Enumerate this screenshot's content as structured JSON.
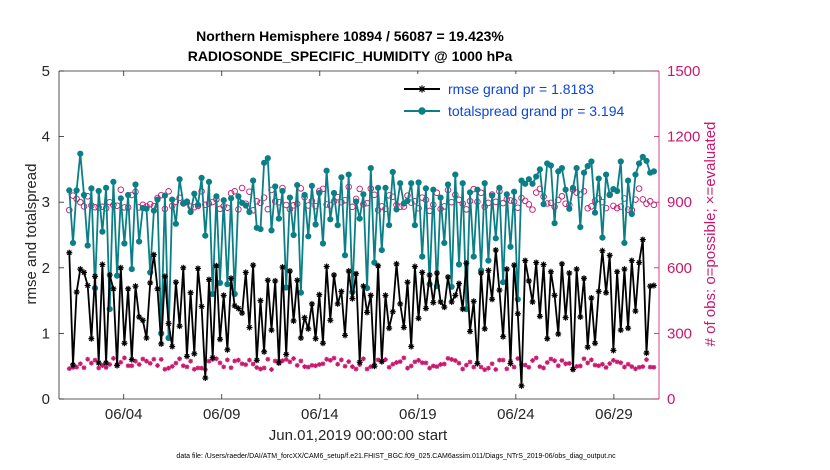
{
  "chart_data": {
    "type": "line",
    "title_line1": "Northern Hemisphere 10894 / 56087 = 19.423%",
    "title_line2": "RADIOSONDE_SPECIFIC_HUMIDITY @ 1000 hPa",
    "xlabel": "Jun.01,2019 00:00:00 start",
    "ylabel_left": "rmse and totalspread",
    "ylabel_right": "# of obs: o=possible; ×=evaluated",
    "ylim_left": [
      0,
      5
    ],
    "ylim_right": [
      0,
      1500
    ],
    "yticks_left": [
      "0",
      "1",
      "2",
      "3",
      "4",
      "5"
    ],
    "yticks_right": [
      "0",
      "300",
      "600",
      "900",
      "1200",
      "1500"
    ],
    "xlim_days": [
      0.6,
      31.2
    ],
    "x_ticks": [
      {
        "day": 3.9,
        "label": "06/04"
      },
      {
        "day": 8.9,
        "label": "06/09"
      },
      {
        "day": 13.9,
        "label": "06/14"
      },
      {
        "day": 18.9,
        "label": "06/19"
      },
      {
        "day": 23.9,
        "label": "06/24"
      },
      {
        "day": 28.9,
        "label": "06/29"
      }
    ],
    "legend": {
      "placement": "top-right",
      "entries": [
        "rmse grand pr = 1.8183",
        "totalspread grand pr = 3.194"
      ]
    },
    "series": [
      {
        "name": "rmse",
        "color": "#000000",
        "marker": "asterisk",
        "values": [
          2.23,
          0.52,
          1.63,
          1.98,
          1.93,
          1.73,
          0.92,
          1.87,
          0.55,
          2.05,
          0.55,
          1.89,
          1.68,
          0.51,
          2.0,
          0.85,
          1.68,
          0.6,
          1.72,
          1.25,
          1.2,
          0.93,
          1.77,
          2.2,
          1.68,
          0.84,
          1.87,
          1.15,
          0.8,
          1.78,
          1.11,
          2.0,
          0.65,
          1.62,
          0.69,
          1.99,
          1.41,
          0.32,
          1.82,
          0.63,
          2.03,
          0.91,
          1.58,
          0.75,
          1.84,
          1.42,
          1.38,
          1.31,
          1.93,
          1.09,
          2.04,
          0.59,
          1.5,
          0.72,
          1.81,
          1.05,
          1.8,
          0.55,
          2.01,
          0.68,
          1.95,
          1.19,
          1.81,
          0.93,
          1.24,
          1.07,
          1.45,
          0.92,
          1.59,
          0.85,
          2.02,
          1.2,
          1.89,
          1.45,
          1.64,
          0.97,
          1.95,
          1.53,
          1.91,
          0.56,
          1.72,
          1.32,
          1.58,
          0.5,
          2.03,
          0.57,
          1.58,
          1.08,
          1.33,
          2.06,
          1.45,
          1.09,
          1.78,
          0.8,
          2.02,
          1.23,
          1.93,
          1.38,
          1.89,
          1.47,
          1.92,
          1.48,
          1.4,
          1.86,
          1.48,
          1.58,
          1.76,
          1.37,
          2.07,
          1.03,
          1.49,
          0.54,
          1.92,
          1.07,
          1.96,
          1.52,
          2.27,
          1.66,
          0.95,
          1.98,
          0.54,
          2.04,
          1.3,
          0.2,
          2.11,
          1.8,
          1.48,
          2.08,
          1.26,
          2.05,
          0.92,
          1.94,
          1.58,
          0.99,
          2.06,
          1.24,
          1.92,
          0.45,
          1.98,
          1.25,
          1.84,
          0.79,
          1.54,
          0.85,
          1.64,
          2.26,
          1.62,
          2.19,
          0.74,
          1.94,
          1.05,
          1.98,
          1.08,
          2.11,
          1.34,
          2.08,
          2.43,
          0.7,
          1.72,
          1.73
        ]
      },
      {
        "name": "totalspread",
        "color": "#0b7f86",
        "marker": "dot",
        "values": [
          3.18,
          2.38,
          3.18,
          3.74,
          3.11,
          2.34,
          3.21,
          1.69,
          3.17,
          2.55,
          3.22,
          1.37,
          3.31,
          1.88,
          3.06,
          2.37,
          3.11,
          1.98,
          3.27,
          2.4,
          2.91,
          2.9,
          1.93,
          2.87,
          3.04,
          1.0,
          3.1,
          0.93,
          3.04,
          2.67,
          3.35,
          2.98,
          3.01,
          2.85,
          3.13,
          2.96,
          3.37,
          2.49,
          3.31,
          1.6,
          3.09,
          1.77,
          3.03,
          1.75,
          3.06,
          1.6,
          3.09,
          2.99,
          2.95,
          2.85,
          3.33,
          2.61,
          2.59,
          3.6,
          3.67,
          2.57,
          3.24,
          2.75,
          3.17,
          1.7,
          3.07,
          2.5,
          3.26,
          1.62,
          3.11,
          2.48,
          3.25,
          2.66,
          3.14,
          2.37,
          3.48,
          2.74,
          3.14,
          2.65,
          3.38,
          2.19,
          3.42,
          1.63,
          3.01,
          2.75,
          3.12,
          1.69,
          3.52,
          2.08,
          3.22,
          2.27,
          3.22,
          2.65,
          3.46,
          2.89,
          3.29,
          2.98,
          3.02,
          3.29,
          2.65,
          3.3,
          2.17,
          3.21,
          1.75,
          3.19,
          1.72,
          3.07,
          2.38,
          3.27,
          1.71,
          3.42,
          2.05,
          3.29,
          1.37,
          3.15,
          2.17,
          3.19,
          1.96,
          3.29,
          2.11,
          3.1,
          2.45,
          3.22,
          1.78,
          3.12,
          2.32,
          3.16,
          1.52,
          3.33,
          3.28,
          3.35,
          3.28,
          3.39,
          3.5,
          2.97,
          3.59,
          3.56,
          2.68,
          3.47,
          3.52,
          3.19,
          2.9,
          3.22,
          3.52,
          2.62,
          3.45,
          3.55,
          3.62,
          2.84,
          3.36,
          2.46,
          3.42,
          3.11,
          3.2,
          3.17,
          3.62,
          2.38,
          3.33,
          2.82,
          3.42,
          3.59,
          3.69,
          3.63,
          3.45,
          3.47
        ]
      },
      {
        "name": "obs_possible",
        "axis": "right",
        "color": "#c8186e",
        "marker": "circle",
        "values": [
          864,
          930,
          915,
          900,
          881,
          927,
          885,
          877,
          876,
          879,
          872,
          900,
          887,
          884,
          957,
          876,
          876,
          933,
          947,
          876,
          888,
          880,
          891,
          882,
          919,
          932,
          869,
          950,
          883,
          901,
          920,
          894,
          900,
          880,
          877,
          883,
          950,
          888,
          893,
          901,
          913,
          870,
          882,
          875,
          941,
          950,
          867,
          965,
          893,
          948,
          863,
          904,
          897,
          921,
          868,
          956,
          904,
          900,
          965,
          887,
          868,
          886,
          892,
          963,
          923,
          885,
          905,
          882,
          951,
          961,
          890,
          885,
          904,
          923,
          900,
          909,
          970,
          879,
          915,
          961,
          891,
          896,
          962,
          934,
          864,
          881,
          870,
          931,
          925,
          887,
          879,
          880,
          930,
          898,
          904,
          872,
          921,
          911,
          860,
          888,
          943,
          869,
          881,
          956,
          900,
          934,
          911,
          893,
          867,
          905,
          960,
          902,
          943,
          880,
          897,
          935,
          902,
          950,
          896,
          913,
          908,
          902,
          875,
          919,
          906,
          890,
          866,
          944,
          961,
          925,
          894,
          897,
          879,
          910,
          927,
          893,
          887,
          957,
          944,
          935,
          950,
          872,
          881,
          906,
          917,
          900,
          873,
          934,
          883,
          873,
          880,
          917,
          866,
          864,
          912,
          962,
          913,
          893,
          904,
          888
        ]
      },
      {
        "name": "obs_evaluated",
        "axis": "right",
        "color": "#c8186e",
        "marker": "asterisk",
        "values": [
          139,
          144,
          146,
          161,
          143,
          182,
          164,
          178,
          142,
          153,
          144,
          158,
          186,
          157,
          168,
          188,
          152,
          152,
          173,
          158,
          183,
          173,
          163,
          182,
          153,
          181,
          136,
          141,
          149,
          164,
          184,
          152,
          147,
          173,
          136,
          142,
          141,
          135,
          173,
          181,
          184,
          165,
          147,
          179,
          143,
          174,
          178,
          161,
          157,
          178,
          160,
          144,
          137,
          142,
          182,
          135,
          174,
          174,
          175,
          181,
          170,
          185,
          154,
          174,
          148,
          146,
          154,
          152,
          158,
          161,
          182,
          177,
          187,
          159,
          179,
          150,
          171,
          148,
          137,
          157,
          184,
          137,
          148,
          158,
          179,
          171,
          180,
          145,
          159,
          167,
          171,
          188,
          141,
          151,
          170,
          177,
          166,
          165,
          141,
          151,
          148,
          158,
          160,
          186,
          181,
          176,
          164,
          137,
          155,
          169,
          146,
          163,
          146,
          134,
          141,
          161,
          135,
          178,
          178,
          138,
          173,
          146,
          185,
          156,
          155,
          145,
          176,
          188,
          148,
          142,
          167,
          183,
          175,
          152,
          176,
          161,
          163,
          136,
          149,
          151,
          184,
          165,
          179,
          155,
          152,
          159,
          144,
          162,
          177,
          170,
          166,
          146,
          159,
          148,
          138,
          145,
          148,
          180,
          146,
          145
        ]
      }
    ]
  },
  "footer": {
    "data_file": "data file: /Users/raeder/DAI/ATM_forcXX/CAM6_setup/f.e21.FHIST_BGC.f09_025.CAM6assim.011/Diags_NTrS_2019-06/obs_diag_output.nc"
  }
}
